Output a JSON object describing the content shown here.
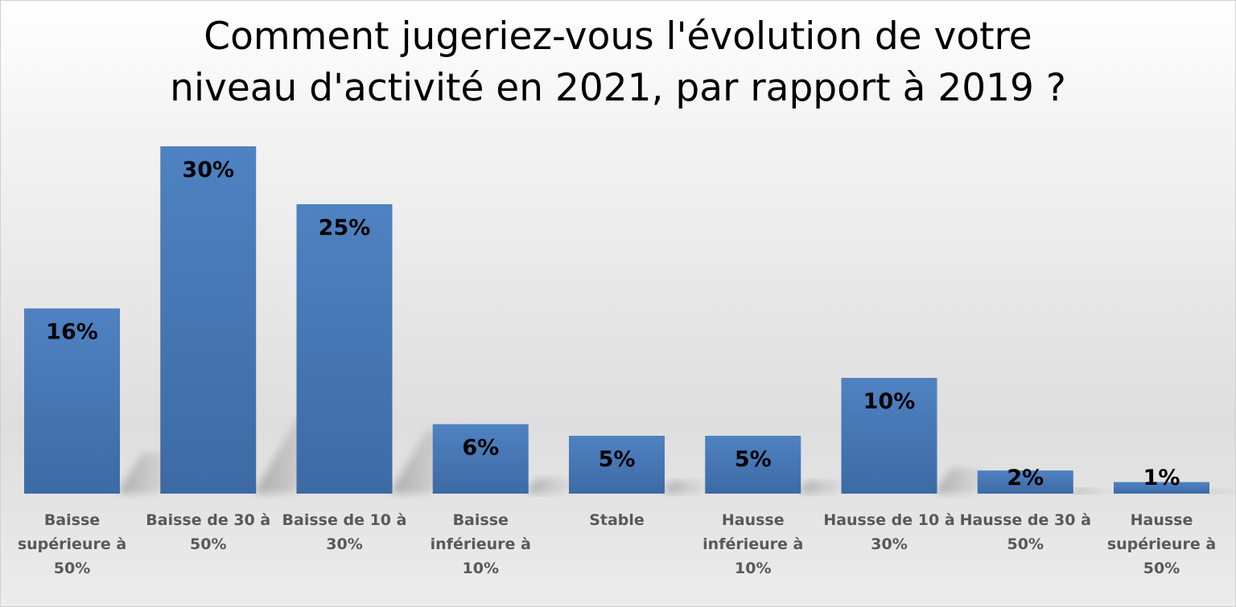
{
  "chart_data": {
    "type": "bar",
    "title": "Comment jugeriez-vous l'évolution de votre niveau d'activité en 2021, par rapport à 2019 ?",
    "categories": [
      "Baisse supérieure à 50%",
      "Baisse de 30 à 50%",
      "Baisse de 10 à 30%",
      "Baisse inférieure à 10%",
      "Stable",
      "Hausse inférieure à 10%",
      "Hausse de 10 à 30%",
      "Hausse de 30 à 50%",
      "Hausse supérieure à 50%"
    ],
    "values": [
      16,
      30,
      25,
      6,
      5,
      5,
      10,
      2,
      1
    ],
    "data_labels": [
      "16%",
      "30%",
      "25%",
      "6%",
      "5%",
      "5%",
      "10%",
      "2%",
      "1%"
    ],
    "unit": "%",
    "ylim": [
      0,
      30
    ],
    "grid": false,
    "legend": "none",
    "bar_color": "#4a7ab8",
    "bar_color_dark": "#3d6aa4"
  }
}
